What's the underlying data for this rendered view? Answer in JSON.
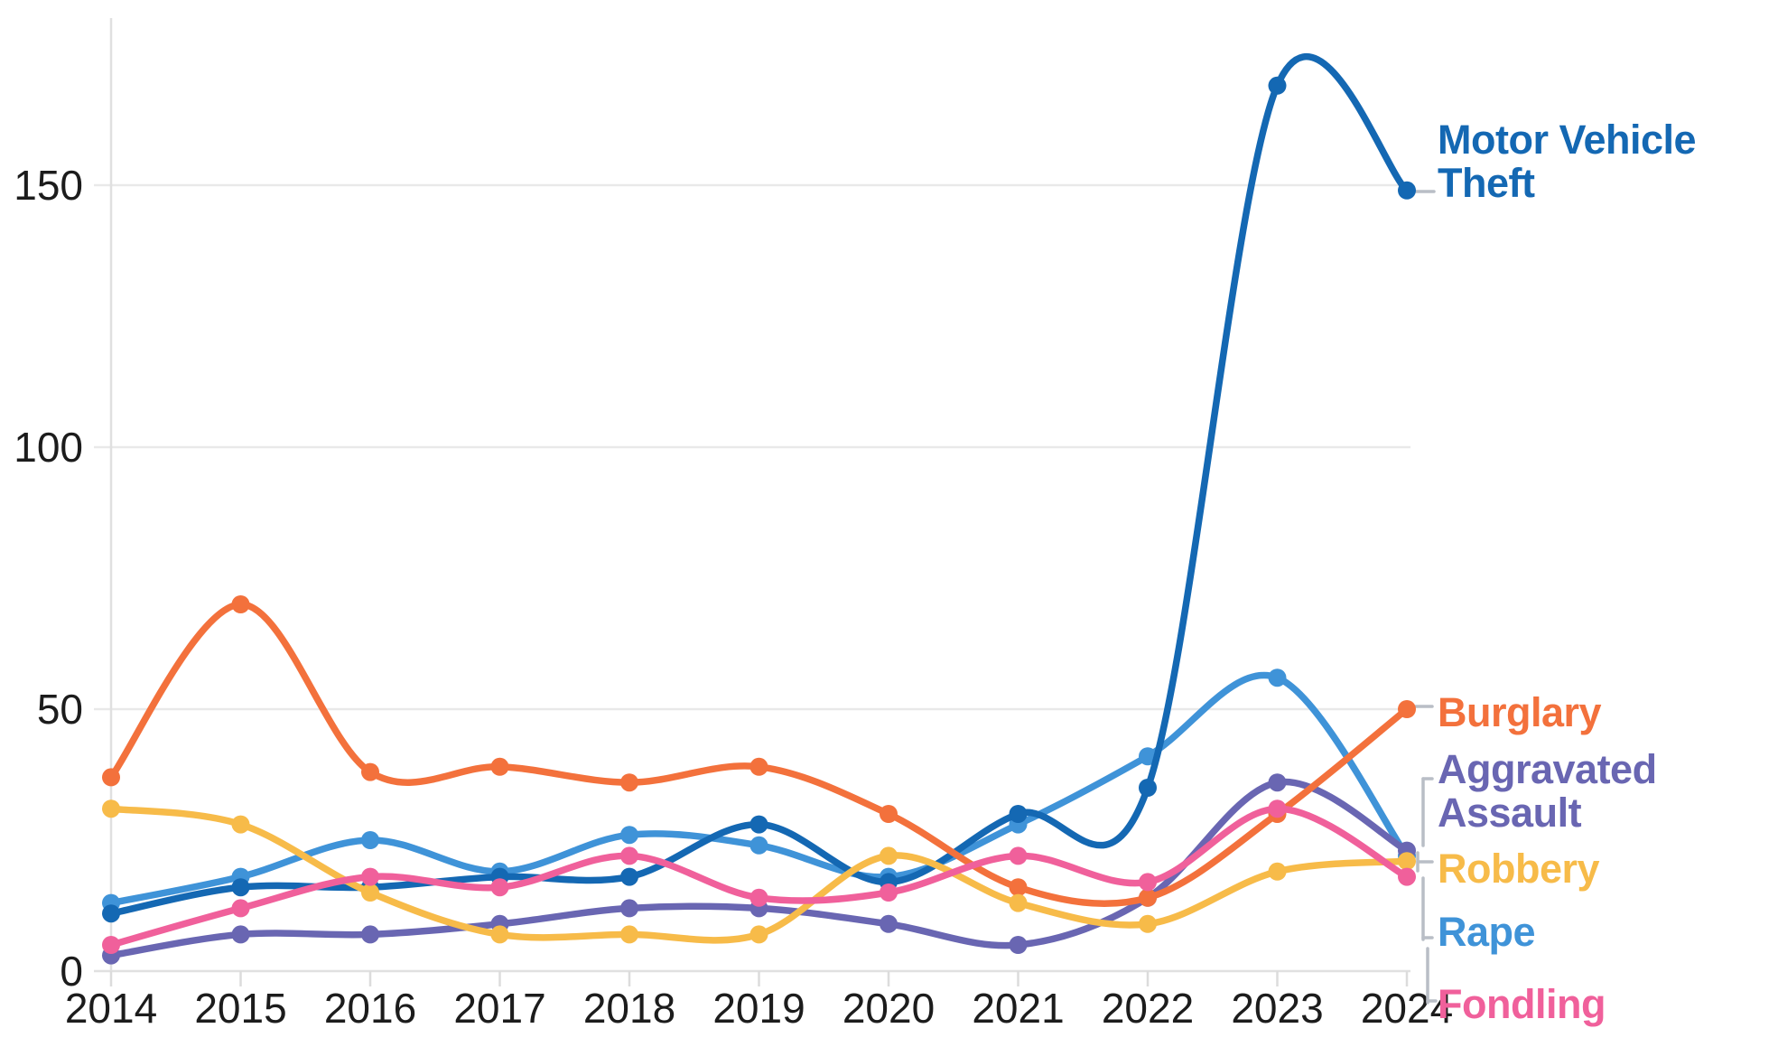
{
  "chart_data": {
    "type": "line",
    "title": "",
    "xlabel": "",
    "ylabel": "",
    "x": [
      2014,
      2015,
      2016,
      2017,
      2018,
      2019,
      2020,
      2021,
      2022,
      2023,
      2024
    ],
    "x_tick_labels": [
      "2014",
      "2015",
      "2016",
      "2017",
      "2018",
      "2019",
      "2020",
      "2021",
      "2022",
      "2023",
      "2024"
    ],
    "y_ticks": [
      0,
      50,
      100,
      150
    ],
    "y_tick_labels": [
      "0",
      "50",
      "100",
      "150"
    ],
    "ylim": [
      0,
      183
    ],
    "grid": "horizontal",
    "legend_position": "right-edge-direct-labels",
    "series": [
      {
        "name": "Motor Vehicle Theft",
        "label": "Motor Vehicle\nTheft",
        "color": "#1468b3",
        "values": [
          11,
          16,
          16,
          18,
          18,
          28,
          17,
          30,
          35,
          169,
          149
        ]
      },
      {
        "name": "Burglary",
        "label": "Burglary",
        "color": "#f3713c",
        "values": [
          37,
          70,
          38,
          39,
          36,
          39,
          30,
          16,
          14,
          30,
          50
        ]
      },
      {
        "name": "Aggravated Assault",
        "label": "Aggravated\nAssault",
        "color": "#6966b2",
        "values": [
          3,
          7,
          7,
          9,
          12,
          12,
          9,
          5,
          14,
          36,
          23
        ]
      },
      {
        "name": "Robbery",
        "label": "Robbery",
        "color": "#f7bb49",
        "values": [
          31,
          28,
          15,
          7,
          7,
          7,
          22,
          13,
          9,
          19,
          21
        ]
      },
      {
        "name": "Rape",
        "label": "Rape",
        "color": "#3f93d8",
        "values": [
          13,
          18,
          25,
          19,
          26,
          24,
          18,
          28,
          41,
          56,
          22
        ]
      },
      {
        "name": "Fondling",
        "label": "Fondling",
        "color": "#f0609b",
        "values": [
          5,
          12,
          18,
          16,
          22,
          14,
          15,
          22,
          17,
          31,
          18
        ]
      }
    ]
  },
  "colors": {
    "gridline": "#e9e9e9",
    "axis": "#e0e0e0",
    "tick": "#dcdcdc",
    "connector": "#b9bec6",
    "tick_text": "#1c1c1c"
  }
}
